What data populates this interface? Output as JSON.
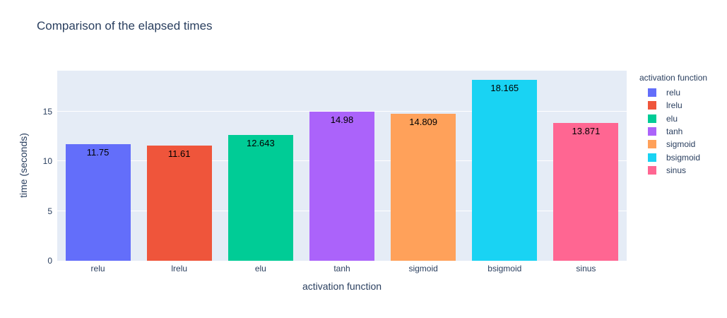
{
  "title": "Comparison of the elapsed times",
  "chart_data": {
    "type": "bar",
    "title": "Comparison of the elapsed times",
    "xlabel": "activation function",
    "ylabel": "time (seconds)",
    "categories": [
      "relu",
      "lrelu",
      "elu",
      "tanh",
      "sigmoid",
      "bsigmoid",
      "sinus"
    ],
    "values": [
      11.75,
      11.61,
      12.643,
      14.98,
      14.809,
      18.165,
      13.871
    ],
    "value_labels": [
      "11.75",
      "11.61",
      "12.643",
      "14.98",
      "14.809",
      "18.165",
      "13.871"
    ],
    "bar_colors": [
      "#636EFA",
      "#EF553B",
      "#00CC96",
      "#AB63FA",
      "#FFA15A",
      "#19D3F3",
      "#FF6692"
    ],
    "ylim": [
      0,
      19.12
    ],
    "yticks": [
      0,
      5,
      10,
      15
    ],
    "ytick_labels": [
      "0",
      "5",
      "10",
      "15"
    ],
    "grid": true,
    "legend_position": "right",
    "legend_title": "activation function",
    "legend_entries": [
      "relu",
      "lrelu",
      "elu",
      "tanh",
      "sigmoid",
      "bsigmoid",
      "sinus"
    ]
  },
  "colors": {
    "plot_background": "#E5ECF6",
    "gridline": "#FFFFFF",
    "text": "#2A3F5F",
    "bar_label_text": "#000000",
    "page_background": "#FFFFFF"
  }
}
